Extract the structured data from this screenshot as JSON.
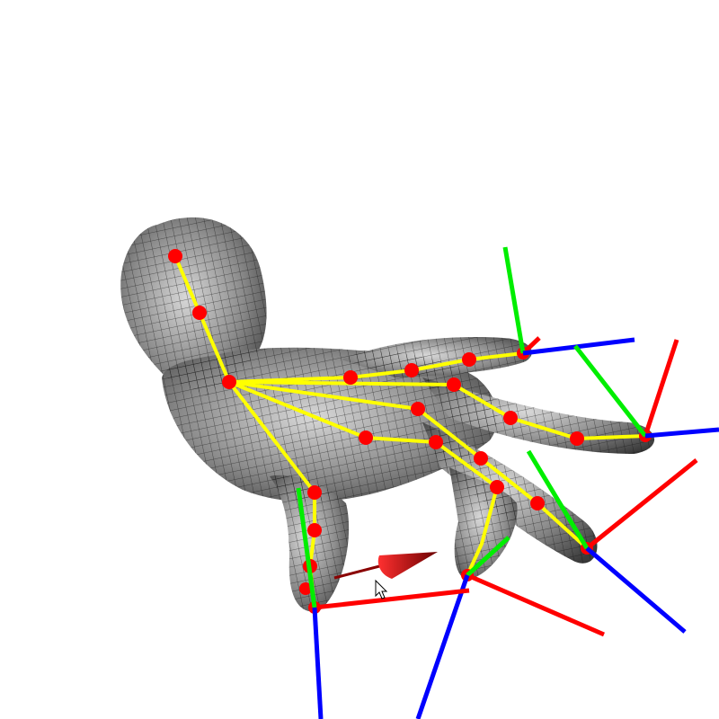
{
  "viewport": {
    "background": "#ffffff"
  },
  "scene": {
    "mesh_color": "#8a8a8a",
    "mesh_line_color": "#111111",
    "skeleton_color": "#ffff00",
    "joint_color": "#ff0000",
    "axis_colors": {
      "x": "#ff0000",
      "y": "#00ee00",
      "z": "#0000ff"
    },
    "gizmo_color": "#cc0000"
  },
  "icons": {
    "cursor": "mouse-pointer-icon"
  }
}
